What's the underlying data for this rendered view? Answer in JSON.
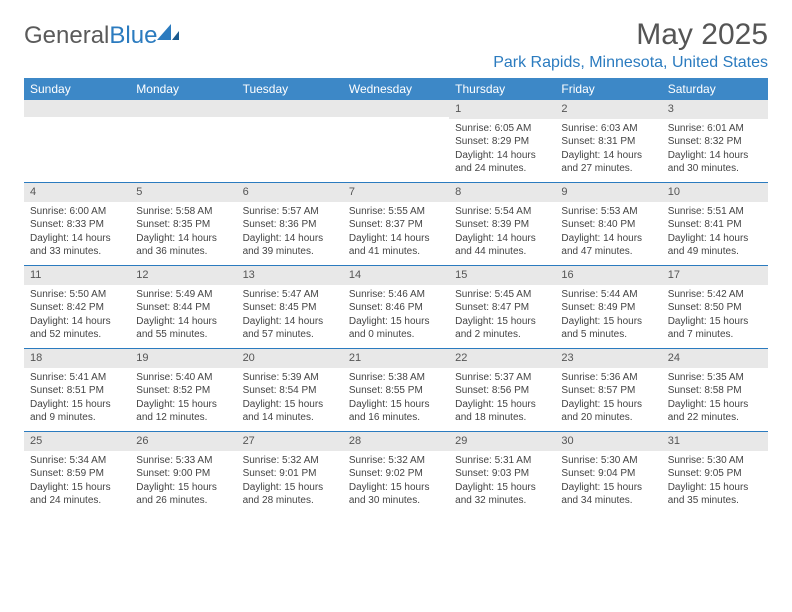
{
  "brand": {
    "part1": "General",
    "part2": "Blue"
  },
  "title": "May 2025",
  "location": "Park Rapids, Minnesota, United States",
  "colors": {
    "header_bg": "#3d88c7",
    "accent": "#2b7bbf",
    "daynum_bg": "#e8e8e8",
    "text": "#444444"
  },
  "day_names": [
    "Sunday",
    "Monday",
    "Tuesday",
    "Wednesday",
    "Thursday",
    "Friday",
    "Saturday"
  ],
  "weeks": [
    [
      {
        "n": "",
        "sr": "",
        "ss": "",
        "dl": ""
      },
      {
        "n": "",
        "sr": "",
        "ss": "",
        "dl": ""
      },
      {
        "n": "",
        "sr": "",
        "ss": "",
        "dl": ""
      },
      {
        "n": "",
        "sr": "",
        "ss": "",
        "dl": ""
      },
      {
        "n": "1",
        "sr": "Sunrise: 6:05 AM",
        "ss": "Sunset: 8:29 PM",
        "dl": "Daylight: 14 hours and 24 minutes."
      },
      {
        "n": "2",
        "sr": "Sunrise: 6:03 AM",
        "ss": "Sunset: 8:31 PM",
        "dl": "Daylight: 14 hours and 27 minutes."
      },
      {
        "n": "3",
        "sr": "Sunrise: 6:01 AM",
        "ss": "Sunset: 8:32 PM",
        "dl": "Daylight: 14 hours and 30 minutes."
      }
    ],
    [
      {
        "n": "4",
        "sr": "Sunrise: 6:00 AM",
        "ss": "Sunset: 8:33 PM",
        "dl": "Daylight: 14 hours and 33 minutes."
      },
      {
        "n": "5",
        "sr": "Sunrise: 5:58 AM",
        "ss": "Sunset: 8:35 PM",
        "dl": "Daylight: 14 hours and 36 minutes."
      },
      {
        "n": "6",
        "sr": "Sunrise: 5:57 AM",
        "ss": "Sunset: 8:36 PM",
        "dl": "Daylight: 14 hours and 39 minutes."
      },
      {
        "n": "7",
        "sr": "Sunrise: 5:55 AM",
        "ss": "Sunset: 8:37 PM",
        "dl": "Daylight: 14 hours and 41 minutes."
      },
      {
        "n": "8",
        "sr": "Sunrise: 5:54 AM",
        "ss": "Sunset: 8:39 PM",
        "dl": "Daylight: 14 hours and 44 minutes."
      },
      {
        "n": "9",
        "sr": "Sunrise: 5:53 AM",
        "ss": "Sunset: 8:40 PM",
        "dl": "Daylight: 14 hours and 47 minutes."
      },
      {
        "n": "10",
        "sr": "Sunrise: 5:51 AM",
        "ss": "Sunset: 8:41 PM",
        "dl": "Daylight: 14 hours and 49 minutes."
      }
    ],
    [
      {
        "n": "11",
        "sr": "Sunrise: 5:50 AM",
        "ss": "Sunset: 8:42 PM",
        "dl": "Daylight: 14 hours and 52 minutes."
      },
      {
        "n": "12",
        "sr": "Sunrise: 5:49 AM",
        "ss": "Sunset: 8:44 PM",
        "dl": "Daylight: 14 hours and 55 minutes."
      },
      {
        "n": "13",
        "sr": "Sunrise: 5:47 AM",
        "ss": "Sunset: 8:45 PM",
        "dl": "Daylight: 14 hours and 57 minutes."
      },
      {
        "n": "14",
        "sr": "Sunrise: 5:46 AM",
        "ss": "Sunset: 8:46 PM",
        "dl": "Daylight: 15 hours and 0 minutes."
      },
      {
        "n": "15",
        "sr": "Sunrise: 5:45 AM",
        "ss": "Sunset: 8:47 PM",
        "dl": "Daylight: 15 hours and 2 minutes."
      },
      {
        "n": "16",
        "sr": "Sunrise: 5:44 AM",
        "ss": "Sunset: 8:49 PM",
        "dl": "Daylight: 15 hours and 5 minutes."
      },
      {
        "n": "17",
        "sr": "Sunrise: 5:42 AM",
        "ss": "Sunset: 8:50 PM",
        "dl": "Daylight: 15 hours and 7 minutes."
      }
    ],
    [
      {
        "n": "18",
        "sr": "Sunrise: 5:41 AM",
        "ss": "Sunset: 8:51 PM",
        "dl": "Daylight: 15 hours and 9 minutes."
      },
      {
        "n": "19",
        "sr": "Sunrise: 5:40 AM",
        "ss": "Sunset: 8:52 PM",
        "dl": "Daylight: 15 hours and 12 minutes."
      },
      {
        "n": "20",
        "sr": "Sunrise: 5:39 AM",
        "ss": "Sunset: 8:54 PM",
        "dl": "Daylight: 15 hours and 14 minutes."
      },
      {
        "n": "21",
        "sr": "Sunrise: 5:38 AM",
        "ss": "Sunset: 8:55 PM",
        "dl": "Daylight: 15 hours and 16 minutes."
      },
      {
        "n": "22",
        "sr": "Sunrise: 5:37 AM",
        "ss": "Sunset: 8:56 PM",
        "dl": "Daylight: 15 hours and 18 minutes."
      },
      {
        "n": "23",
        "sr": "Sunrise: 5:36 AM",
        "ss": "Sunset: 8:57 PM",
        "dl": "Daylight: 15 hours and 20 minutes."
      },
      {
        "n": "24",
        "sr": "Sunrise: 5:35 AM",
        "ss": "Sunset: 8:58 PM",
        "dl": "Daylight: 15 hours and 22 minutes."
      }
    ],
    [
      {
        "n": "25",
        "sr": "Sunrise: 5:34 AM",
        "ss": "Sunset: 8:59 PM",
        "dl": "Daylight: 15 hours and 24 minutes."
      },
      {
        "n": "26",
        "sr": "Sunrise: 5:33 AM",
        "ss": "Sunset: 9:00 PM",
        "dl": "Daylight: 15 hours and 26 minutes."
      },
      {
        "n": "27",
        "sr": "Sunrise: 5:32 AM",
        "ss": "Sunset: 9:01 PM",
        "dl": "Daylight: 15 hours and 28 minutes."
      },
      {
        "n": "28",
        "sr": "Sunrise: 5:32 AM",
        "ss": "Sunset: 9:02 PM",
        "dl": "Daylight: 15 hours and 30 minutes."
      },
      {
        "n": "29",
        "sr": "Sunrise: 5:31 AM",
        "ss": "Sunset: 9:03 PM",
        "dl": "Daylight: 15 hours and 32 minutes."
      },
      {
        "n": "30",
        "sr": "Sunrise: 5:30 AM",
        "ss": "Sunset: 9:04 PM",
        "dl": "Daylight: 15 hours and 34 minutes."
      },
      {
        "n": "31",
        "sr": "Sunrise: 5:30 AM",
        "ss": "Sunset: 9:05 PM",
        "dl": "Daylight: 15 hours and 35 minutes."
      }
    ]
  ]
}
